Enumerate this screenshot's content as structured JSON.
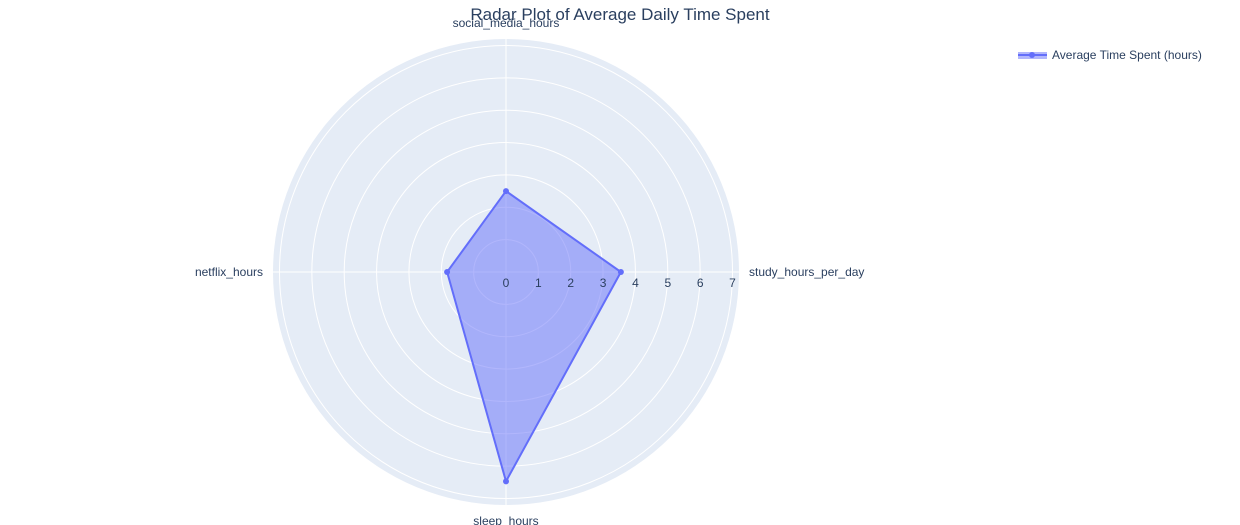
{
  "chart_data": {
    "type": "radar",
    "title": "Radar Plot of Average Daily Time Spent",
    "categories": [
      "study_hours_per_day",
      "social_media_hours",
      "netflix_hours",
      "sleep_hours"
    ],
    "series": [
      {
        "name": "Average Time Spent (hours)",
        "values": [
          3.55,
          2.5,
          1.82,
          6.47
        ],
        "color": "#636efa"
      }
    ],
    "radial_axis": {
      "range": [
        0,
        7.2
      ],
      "ticks": [
        0,
        1,
        2,
        3,
        4,
        5,
        6,
        7
      ]
    },
    "grid": true,
    "legend_position": "top-right",
    "background_color": "#e5ecf6",
    "grid_color": "#ffffff"
  }
}
